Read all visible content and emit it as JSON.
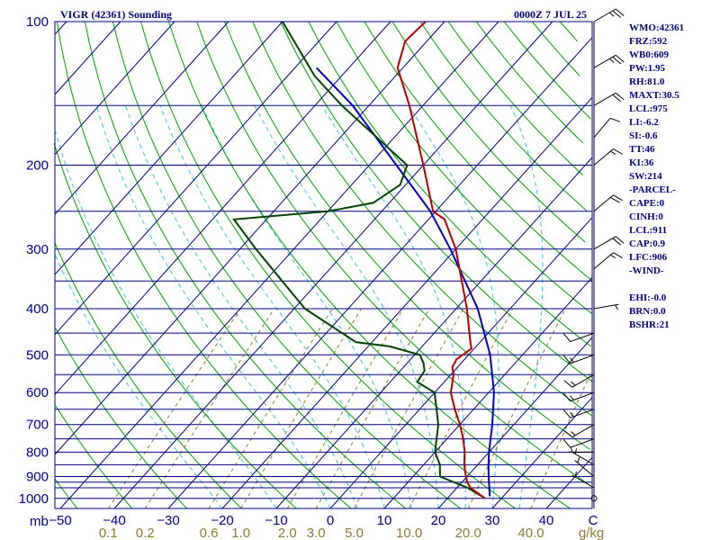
{
  "header": {
    "title": "VIGR (42361) Sounding",
    "time": "0000Z  7 JUL 25"
  },
  "indices": [
    "WMO:42361",
    "FRZ:592",
    "WB0:609",
    "PW:1.95",
    "RH:81.0",
    "MAXT:30.5",
    "LCL:975",
    "LI:-6.2",
    "SI:-0.6",
    "TT:46",
    "KI:36",
    "SW:214",
    "-PARCEL-",
    "CAPE:0",
    "CINH:0",
    "LCL:911",
    "CAP:0.9",
    "LFC:906",
    "-WIND-",
    "",
    "EHI:-0.0",
    "BRN:0.0",
    "BSHR:21"
  ],
  "colors": {
    "frame": "#000080",
    "temperature": "#b00000",
    "dewpoint": "#004000",
    "parcel": "#0000c0",
    "dry_adiabat": "#00a000",
    "moist_adiabat": "#40c0e0",
    "mixing_ratio": "#8b7a2e",
    "isotherm": "#000080"
  },
  "chart_data": {
    "type": "skew-t",
    "pressure_unit": "mb",
    "temperature_unit": "C",
    "mixing_ratio_unit": "g/kg",
    "pressure_ticks": [
      100,
      200,
      300,
      400,
      500,
      600,
      700,
      800,
      900,
      1000
    ],
    "pressure_tick_labels": [
      "100",
      "200",
      "300",
      "400",
      "500",
      "600",
      "700",
      "800",
      "900",
      "1000"
    ],
    "isobars": [
      100,
      150,
      200,
      250,
      300,
      350,
      400,
      450,
      500,
      550,
      600,
      650,
      700,
      750,
      800,
      850,
      900,
      925,
      950,
      1000
    ],
    "temperature_ticks": [
      -50,
      -40,
      -30,
      -20,
      -10,
      0,
      10,
      20,
      30,
      40
    ],
    "temperature_tick_labels": [
      "-50",
      "-40",
      "-30",
      "-20",
      "-10",
      "0",
      "10",
      "20",
      "30",
      "40"
    ],
    "mixing_ratio_ticks": [
      0.1,
      0.2,
      0.6,
      1.0,
      2.0,
      3.0,
      5.0,
      10.0,
      20.0,
      40.0
    ],
    "mixing_ratio_tick_labels": [
      "0.1",
      "0.2",
      "0.6",
      "1.0",
      "2.0",
      "3.0",
      "5.0",
      "10.0",
      "20.0",
      "40.0"
    ],
    "axis_left_label": "mb",
    "axis_right_label": "C",
    "mr_unit_label": "g/kg",
    "temperature_profile": [
      {
        "p": 1000,
        "t": 27.0
      },
      {
        "p": 950,
        "t": 22.5
      },
      {
        "p": 925,
        "t": 21.0
      },
      {
        "p": 900,
        "t": 19.8
      },
      {
        "p": 850,
        "t": 17.5
      },
      {
        "p": 800,
        "t": 15.5
      },
      {
        "p": 750,
        "t": 13.0
      },
      {
        "p": 700,
        "t": 10.0
      },
      {
        "p": 650,
        "t": 6.5
      },
      {
        "p": 600,
        "t": 3.0
      },
      {
        "p": 550,
        "t": 0.5
      },
      {
        "p": 530,
        "t": -1.0
      },
      {
        "p": 510,
        "t": -1.5
      },
      {
        "p": 485,
        "t": -0.5
      },
      {
        "p": 470,
        "t": -1.8
      },
      {
        "p": 400,
        "t": -8.0
      },
      {
        "p": 300,
        "t": -20.0
      },
      {
        "p": 260,
        "t": -27.0
      },
      {
        "p": 250,
        "t": -30.5
      },
      {
        "p": 200,
        "t": -40.0
      },
      {
        "p": 150,
        "t": -52.5
      },
      {
        "p": 125,
        "t": -61.0
      },
      {
        "p": 110,
        "t": -64.0
      },
      {
        "p": 100,
        "t": -63.5
      }
    ],
    "dewpoint_profile": [
      {
        "p": 1000,
        "t": 27.0
      },
      {
        "p": 950,
        "t": 22.0
      },
      {
        "p": 900,
        "t": 15.0
      },
      {
        "p": 850,
        "t": 13.0
      },
      {
        "p": 800,
        "t": 10.0
      },
      {
        "p": 700,
        "t": 6.0
      },
      {
        "p": 600,
        "t": 0.0
      },
      {
        "p": 570,
        "t": -5.0
      },
      {
        "p": 540,
        "t": -5.5
      },
      {
        "p": 520,
        "t": -7.0
      },
      {
        "p": 500,
        "t": -9.0
      },
      {
        "p": 480,
        "t": -16.0
      },
      {
        "p": 470,
        "t": -23.0
      },
      {
        "p": 400,
        "t": -38.0
      },
      {
        "p": 300,
        "t": -57.0
      },
      {
        "p": 260,
        "t": -66.0
      },
      {
        "p": 250,
        "t": -50.0
      },
      {
        "p": 240,
        "t": -43.0
      },
      {
        "p": 220,
        "t": -41.0
      },
      {
        "p": 200,
        "t": -43.0
      },
      {
        "p": 150,
        "t": -65.0
      },
      {
        "p": 130,
        "t": -75.0
      },
      {
        "p": 100,
        "t": -90.0
      }
    ],
    "parcel_profile": [
      {
        "p": 990,
        "t": 27.5
      },
      {
        "p": 950,
        "t": 26.0
      },
      {
        "p": 900,
        "t": 24.0
      },
      {
        "p": 850,
        "t": 22.0
      },
      {
        "p": 800,
        "t": 20.0
      },
      {
        "p": 700,
        "t": 16.0
      },
      {
        "p": 600,
        "t": 11.0
      },
      {
        "p": 500,
        "t": 4.0
      },
      {
        "p": 400,
        "t": -6.0
      },
      {
        "p": 300,
        "t": -21.0
      },
      {
        "p": 250,
        "t": -31.0
      },
      {
        "p": 200,
        "t": -45.0
      },
      {
        "p": 150,
        "t": -63.0
      },
      {
        "p": 125,
        "t": -76.0
      }
    ],
    "wind_profile_knots": [
      {
        "p": 100,
        "dir": 60,
        "spd": 25
      },
      {
        "p": 125,
        "dir": 60,
        "spd": 25
      },
      {
        "p": 150,
        "dir": 60,
        "spd": 20
      },
      {
        "p": 175,
        "dir": 40,
        "spd": 10
      },
      {
        "p": 200,
        "dir": 50,
        "spd": 15
      },
      {
        "p": 250,
        "dir": 50,
        "spd": 20
      },
      {
        "p": 300,
        "dir": 60,
        "spd": 20
      },
      {
        "p": 330,
        "dir": 50,
        "spd": 15
      },
      {
        "p": 400,
        "dir": 80,
        "spd": 5
      },
      {
        "p": 450,
        "dir": 250,
        "spd": 10
      },
      {
        "p": 500,
        "dir": 250,
        "spd": 15
      },
      {
        "p": 550,
        "dir": 240,
        "spd": 15
      },
      {
        "p": 600,
        "dir": 250,
        "spd": 15
      },
      {
        "p": 650,
        "dir": 250,
        "spd": 15
      },
      {
        "p": 700,
        "dir": 240,
        "spd": 15
      },
      {
        "p": 750,
        "dir": 250,
        "spd": 10
      },
      {
        "p": 800,
        "dir": 270,
        "spd": 5
      },
      {
        "p": 850,
        "dir": 300,
        "spd": 5
      },
      {
        "p": 900,
        "dir": 310,
        "spd": 5
      },
      {
        "p": 950,
        "dir": 300,
        "spd": 5
      },
      {
        "p": 1000,
        "dir": 0,
        "spd": 0
      }
    ]
  }
}
